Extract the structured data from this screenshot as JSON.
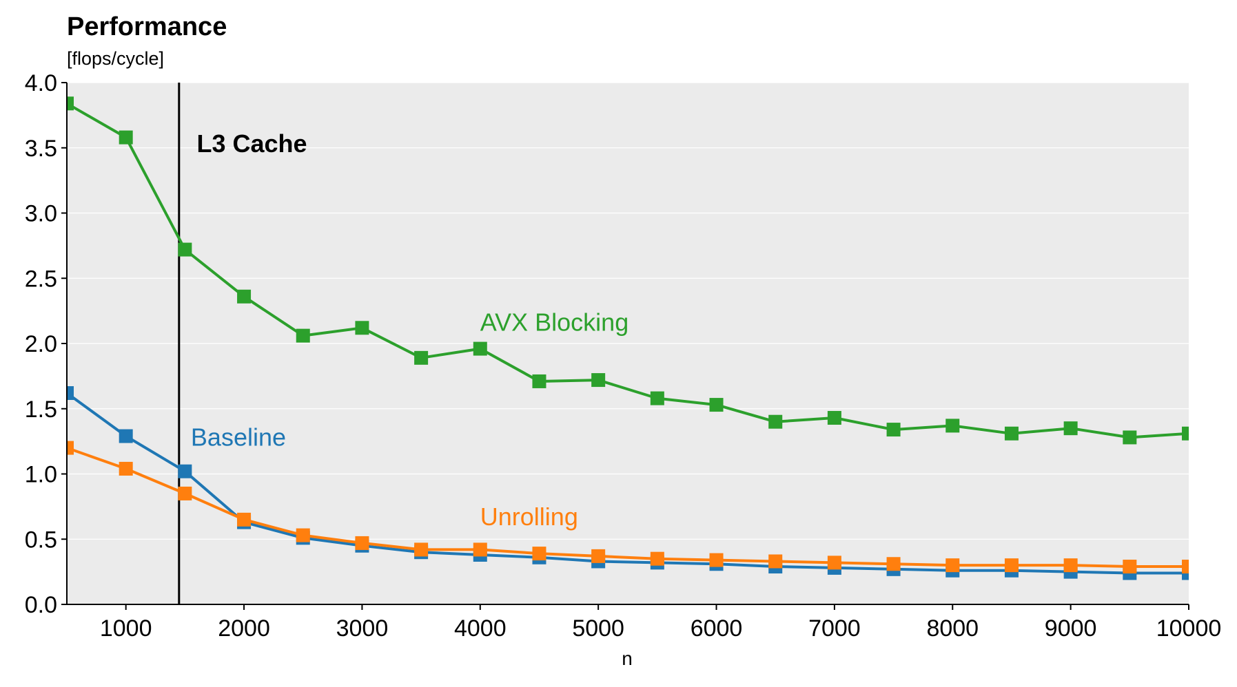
{
  "chart_data": {
    "type": "line",
    "title": "Performance",
    "subtitle": "[flops/cycle]",
    "xlabel": "n",
    "ylabel": "",
    "xlim": [
      500,
      10000
    ],
    "ylim": [
      0,
      4
    ],
    "grid": "horizontal",
    "legend": "inline labels",
    "x_ticks": [
      1000,
      2000,
      3000,
      4000,
      5000,
      6000,
      7000,
      8000,
      9000,
      10000
    ],
    "y_ticks": [
      "0.0",
      "0.5",
      "1.0",
      "1.5",
      "2.0",
      "2.5",
      "3.0",
      "3.5",
      "4.0"
    ],
    "x": [
      500,
      1000,
      1500,
      2000,
      2500,
      3000,
      3500,
      4000,
      4500,
      5000,
      5500,
      6000,
      6500,
      7000,
      7500,
      8000,
      8500,
      9000,
      9500,
      10000
    ],
    "series": [
      {
        "name": "Baseline",
        "color": "#1f77b4",
        "values": [
          1.62,
          1.29,
          1.02,
          0.63,
          0.51,
          0.45,
          0.4,
          0.38,
          0.36,
          0.33,
          0.32,
          0.31,
          0.29,
          0.28,
          0.27,
          0.26,
          0.26,
          0.25,
          0.24,
          0.24
        ],
        "label_x": 1550,
        "label_y": 1.28
      },
      {
        "name": "Unrolling",
        "color": "#ff7f0e",
        "values": [
          1.2,
          1.04,
          0.85,
          0.65,
          0.53,
          0.47,
          0.42,
          0.42,
          0.39,
          0.37,
          0.35,
          0.34,
          0.33,
          0.32,
          0.31,
          0.3,
          0.3,
          0.3,
          0.29,
          0.29
        ],
        "label_x": 4000,
        "label_y": 0.67
      },
      {
        "name": "AVX Blocking",
        "color": "#2ca02c",
        "values": [
          3.84,
          3.58,
          2.72,
          2.36,
          2.06,
          2.12,
          1.89,
          1.96,
          1.71,
          1.72,
          1.58,
          1.53,
          1.4,
          1.43,
          1.34,
          1.37,
          1.31,
          1.35,
          1.28,
          1.31
        ],
        "label_x": 4000,
        "label_y": 2.16
      }
    ],
    "annotations": [
      {
        "type": "vline",
        "x": 1450,
        "label": "L3 Cache",
        "label_x": 1600,
        "label_y": 3.53
      }
    ],
    "colors": {
      "background": "#ebebeb",
      "grid": "#ffffff",
      "vline": "#000000"
    }
  }
}
